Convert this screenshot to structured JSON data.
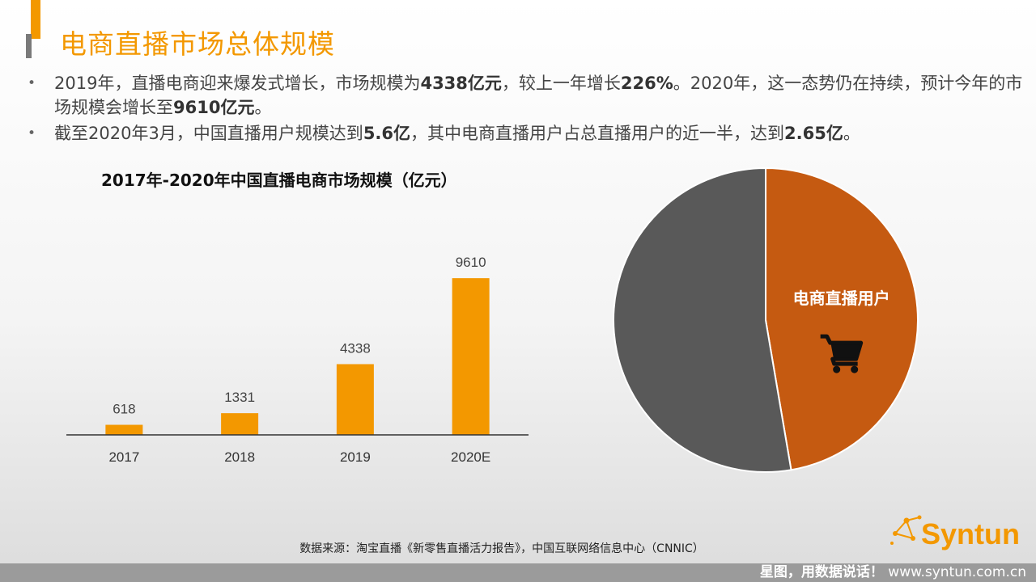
{
  "slide": {
    "title": "电商直播市场总体规模",
    "bullets": [
      {
        "parts": [
          {
            "text": "2019年，直播电商迎来爆发式增长，市场规模为",
            "bold": false
          },
          {
            "text": "4338亿元",
            "bold": true
          },
          {
            "text": "，较上一年增长",
            "bold": false
          },
          {
            "text": "226%",
            "bold": true
          },
          {
            "text": "。2020年，这一态势仍在持续，预计今年的市场规模会增长至",
            "bold": false
          },
          {
            "text": "9610亿元",
            "bold": true
          },
          {
            "text": "。",
            "bold": false
          }
        ]
      },
      {
        "parts": [
          {
            "text": "截至2020年3月，中国直播用户规模达到",
            "bold": false
          },
          {
            "text": "5.6亿",
            "bold": true
          },
          {
            "text": "，其中电商直播用户占总直播用户的近一半，达到",
            "bold": false
          },
          {
            "text": "2.65亿",
            "bold": true
          },
          {
            "text": "。",
            "bold": false
          }
        ]
      }
    ],
    "source": "数据来源：淘宝直播《新零售直播活力报告》，中国互联网络信息中心（CNNIC）",
    "footer": {
      "slogan": "星图，用数据说话！",
      "url": "www.syntun.com.cn"
    },
    "logo": {
      "text": "Syntun"
    },
    "icon": "shopping-cart-icon"
  },
  "chart_data": [
    {
      "type": "bar",
      "title": "2017年-2020年中国直播电商市场规模（亿元）",
      "categories": [
        "2017",
        "2018",
        "2019",
        "2020E"
      ],
      "values": [
        618,
        1331,
        4338,
        9610
      ],
      "ylim": [
        0,
        11500
      ],
      "grid": false,
      "color": "#f39800"
    },
    {
      "type": "pie",
      "slices": [
        {
          "label": "电商直播用户",
          "value": 2.65,
          "color": "#c55a11"
        },
        {
          "label": "",
          "value": 2.95,
          "color": "#595959"
        }
      ],
      "start": "12 o'clock",
      "direction": "clockwise"
    }
  ]
}
